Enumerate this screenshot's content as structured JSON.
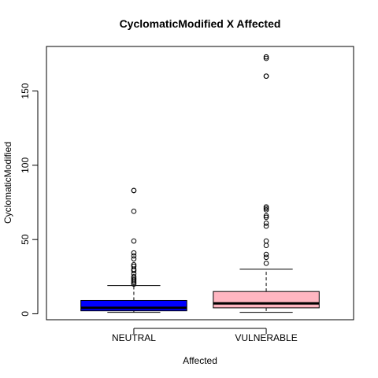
{
  "chart_data": {
    "type": "boxplot",
    "title": "CyclomaticModified X Affected",
    "xlabel": "Affected",
    "ylabel": "CyclomaticModified",
    "ylim": [
      -4,
      180
    ],
    "yticks": [
      0,
      50,
      100,
      150
    ],
    "categories": [
      "NEUTRAL",
      "VULNERABLE"
    ],
    "boxes": [
      {
        "name": "NEUTRAL",
        "color": "#0000ff",
        "min": 1,
        "q1": 2,
        "median": 4,
        "q3": 9,
        "max": 19,
        "outliers": [
          20,
          21,
          22,
          23,
          24,
          25,
          27,
          29,
          30,
          32,
          33,
          37,
          39,
          41,
          49,
          69,
          83,
          83
        ]
      },
      {
        "name": "VULNERABLE",
        "color": "#ffb6c1",
        "min": 1,
        "q1": 4,
        "median": 7,
        "q3": 15,
        "max": 30,
        "outliers": [
          34,
          38,
          40,
          46,
          49,
          59,
          61,
          65,
          66,
          70,
          71,
          72,
          160,
          160,
          172,
          173
        ]
      }
    ]
  }
}
